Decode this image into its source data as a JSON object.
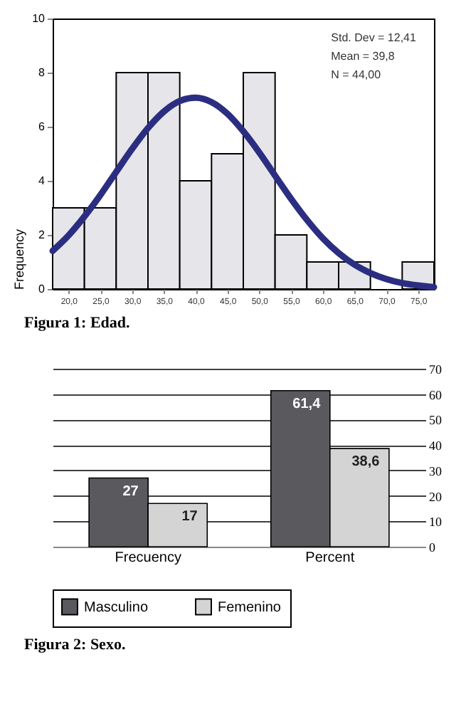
{
  "chart_data": [
    {
      "type": "histogram",
      "bins": [
        17.5,
        22.5,
        27.5,
        32.5,
        37.5,
        42.5,
        47.5,
        52.5,
        57.5,
        62.5,
        67.5,
        72.5,
        77.5
      ],
      "values": [
        3,
        3,
        8,
        8,
        4,
        5,
        8,
        2,
        1,
        1,
        0,
        1
      ],
      "color": "#e6e6ea",
      "xlim": [
        17.5,
        77.5
      ],
      "xticks": [
        {
          "value": 20,
          "label": "20,0"
        },
        {
          "value": 25,
          "label": "25,0"
        },
        {
          "value": 30,
          "label": "30,0"
        },
        {
          "value": 35,
          "label": "35,0"
        },
        {
          "value": 40,
          "label": "40,0"
        },
        {
          "value": 45,
          "label": "45,0"
        },
        {
          "value": 50,
          "label": "50,0"
        },
        {
          "value": 55,
          "label": "55,0"
        },
        {
          "value": 60,
          "label": "60,0"
        },
        {
          "value": 65,
          "label": "65,0"
        },
        {
          "value": 70,
          "label": "70,0"
        },
        {
          "value": 75,
          "label": "75,0"
        }
      ],
      "ylim": [
        0,
        10
      ],
      "yticks": [
        0,
        2,
        4,
        6,
        8,
        10
      ],
      "ylabel": "Frequency",
      "grid": false,
      "series": [
        {
          "type": "line",
          "color": "#2b2e80",
          "x": [
            17.5,
            20,
            22.5,
            25,
            27.5,
            30,
            32.5,
            35,
            37.5,
            40,
            42.5,
            45,
            47.5,
            50,
            52.5,
            55,
            57.5,
            60,
            62.5,
            65,
            67.5,
            70,
            72.5,
            75,
            77.5
          ],
          "values": [
            1.41,
            1.98,
            2.68,
            3.47,
            4.33,
            5.18,
            5.95,
            6.56,
            6.95,
            7.07,
            6.91,
            6.48,
            5.83,
            5.05,
            4.19,
            3.34,
            2.56,
            1.88,
            1.33,
            0.9,
            0.59,
            0.37,
            0.22,
            0.13,
            0.07
          ]
        }
      ],
      "annotations": [
        "Std. Dev = 12,41",
        "Mean = 39,8",
        "N = 44,00",
        "Figura 1: Edad."
      ]
    },
    {
      "type": "bar",
      "categories": [
        "Frecuency",
        "Percent"
      ],
      "series": [
        {
          "name": "Masculino",
          "color": "#5a5a5e",
          "values": [
            27,
            61.4
          ],
          "value_labels": [
            "27",
            "61,4"
          ]
        },
        {
          "name": "Femenino",
          "color": "#d4d4d4",
          "values": [
            17,
            38.6
          ],
          "value_labels": [
            "17",
            "38,6"
          ]
        }
      ],
      "ylim": [
        0,
        70
      ],
      "yticks": [
        0,
        10,
        20,
        30,
        40,
        50,
        60,
        70
      ],
      "grid": "y",
      "legend": "bottom",
      "annotations": [
        "Figura 2: Sexo."
      ]
    }
  ]
}
